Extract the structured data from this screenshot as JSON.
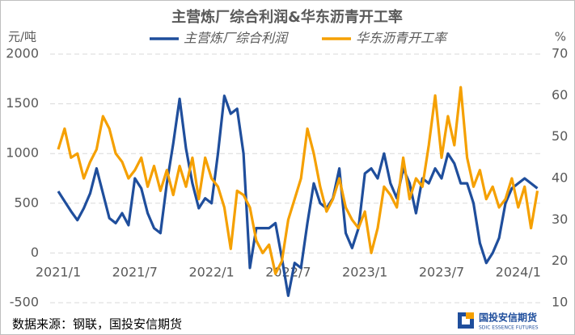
{
  "chart_data": {
    "type": "line",
    "title": "主营炼厂综合利润&华东沥青开工率",
    "y_label": "元/吨",
    "y2_label": "%",
    "categories": [
      "2021/1",
      null,
      null,
      null,
      null,
      null,
      null,
      null,
      null,
      null,
      null,
      null,
      "2021/7",
      null,
      null,
      null,
      null,
      null,
      null,
      null,
      null,
      null,
      null,
      null,
      "2022/1",
      null,
      null,
      null,
      null,
      null,
      null,
      null,
      null,
      null,
      null,
      null,
      "2022/7",
      null,
      null,
      null,
      null,
      null,
      null,
      null,
      null,
      null,
      null,
      null,
      "2023/1",
      null,
      null,
      null,
      null,
      null,
      null,
      null,
      null,
      null,
      null,
      null,
      "2023/7",
      null,
      null,
      null,
      null,
      null,
      null,
      null,
      null,
      null,
      null,
      null,
      "2024/1",
      null,
      null,
      null
    ],
    "series": [
      {
        "name": "主营炼厂综合利润",
        "color": "#1f4e9c",
        "values": [
          620,
          520,
          420,
          330,
          450,
          600,
          850,
          600,
          350,
          300,
          400,
          280,
          750,
          650,
          400,
          250,
          200,
          700,
          1100,
          1550,
          1050,
          700,
          450,
          550,
          500,
          1000,
          1580,
          1400,
          1450,
          1000,
          -150,
          250,
          250,
          250,
          300,
          -50,
          -430,
          -100,
          -150,
          300,
          700,
          500,
          450,
          550,
          850,
          200,
          50,
          250,
          800,
          850,
          750,
          1000,
          700,
          550,
          850,
          700,
          400,
          750,
          700,
          850,
          750,
          1000,
          900,
          700,
          700,
          500,
          100,
          -100,
          0,
          150,
          500,
          650,
          700,
          750,
          700,
          650
        ]
      },
      {
        "name": "华东沥青开工率",
        "color": "#f5a000",
        "axis": "y2",
        "values": [
          47,
          52,
          45,
          46,
          40,
          44,
          47,
          55,
          52,
          46,
          44,
          40,
          42,
          45,
          38,
          43,
          37,
          42,
          36,
          43,
          38,
          45,
          35,
          45,
          40,
          38,
          33,
          23,
          37,
          36,
          33,
          25,
          22,
          24,
          17,
          20,
          30,
          35,
          40,
          52,
          46,
          38,
          32,
          35,
          40,
          33,
          30,
          28,
          32,
          22,
          28,
          38,
          36,
          33,
          45,
          35,
          40,
          38,
          48,
          60,
          45,
          55,
          48,
          62,
          45,
          38,
          42,
          35,
          38,
          33,
          35,
          40,
          33,
          38,
          28,
          37
        ]
      }
    ],
    "ylim": [
      -500,
      2000
    ],
    "yticks": [
      -500,
      0,
      500,
      1000,
      1500,
      2000
    ],
    "y2lim": [
      10,
      70
    ],
    "y2ticks": [
      10,
      20,
      30,
      40,
      50,
      60,
      70
    ],
    "grid": true,
    "legend": "top"
  },
  "source": "数据来源：钢联，国投安信期货",
  "logo": {
    "name": "国投安信期货",
    "subtitle": "SDIC ESSENCE FUTURES"
  }
}
